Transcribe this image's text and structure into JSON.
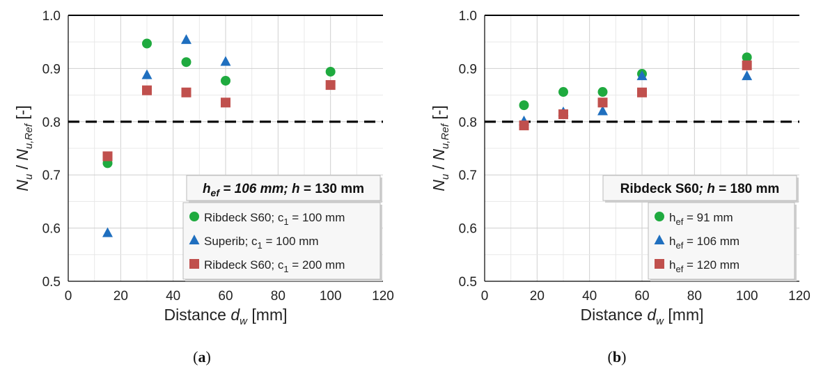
{
  "colors": {
    "green": "#1faa3f",
    "blue": "#1f6fbf",
    "red": "#c0504d",
    "grid": "#d9d9d9",
    "dash": "#000000"
  },
  "chart_data": [
    {
      "type": "scatter",
      "caption": "a",
      "xlabel": "Distance d_w [mm]",
      "xlabel_main": "Distance ",
      "xlabel_var": "d",
      "xlabel_sub": "w",
      "xlabel_unit": " [mm]",
      "ylabel": "N_u / N_u,Ref [-]",
      "xlim": [
        0,
        120
      ],
      "ylim": [
        0.5,
        1.0
      ],
      "xticks": [
        "0",
        "20",
        "40",
        "60",
        "80",
        "100",
        "120"
      ],
      "yticks": [
        "0.5",
        "0.6",
        "0.7",
        "0.8",
        "0.9",
        "1.0"
      ],
      "reference_line": 0.8,
      "info_box": {
        "p1": "h",
        "s1": "ef",
        "p2": " = 106 mm; ",
        "p3": "h",
        "p4": " = 130 mm"
      },
      "legend_position": "bottom-right",
      "series": [
        {
          "name": "Ribdeck S60; c1 = 100 mm",
          "label_main": "Ribdeck S60; c",
          "label_sub": "1",
          "label_tail": " = 100 mm",
          "marker": "circle",
          "color": "#1faa3f",
          "x": [
            15,
            30,
            45,
            60,
            100
          ],
          "y": [
            0.722,
            0.947,
            0.912,
            0.877,
            0.894
          ]
        },
        {
          "name": "Superib; c1 = 100 mm",
          "label_main": "Superib; c",
          "label_sub": "1",
          "label_tail": " = 100 mm",
          "marker": "triangle",
          "color": "#1f6fbf",
          "x": [
            15,
            30,
            45,
            60
          ],
          "y": [
            0.591,
            0.888,
            0.954,
            0.913
          ]
        },
        {
          "name": "Ribdeck S60; c1 = 200 mm",
          "label_main": "Ribdeck S60; c",
          "label_sub": "1",
          "label_tail": " = 200 mm",
          "marker": "square",
          "color": "#c0504d",
          "x": [
            15,
            30,
            45,
            60,
            100
          ],
          "y": [
            0.735,
            0.859,
            0.855,
            0.836,
            0.869
          ]
        }
      ]
    },
    {
      "type": "scatter",
      "caption": "b",
      "xlabel": "Distance d_w [mm]",
      "xlabel_main": "Distance ",
      "xlabel_var": "d",
      "xlabel_sub": "w",
      "xlabel_unit": " [mm]",
      "ylabel": "N_u / N_u,Ref [-]",
      "xlim": [
        0,
        120
      ],
      "ylim": [
        0.5,
        1.0
      ],
      "xticks": [
        "0",
        "20",
        "40",
        "60",
        "80",
        "100",
        "120"
      ],
      "yticks": [
        "0.5",
        "0.6",
        "0.7",
        "0.8",
        "0.9",
        "1.0"
      ],
      "reference_line": 0.8,
      "info_box": {
        "p1": "Ribdeck S60",
        "s1": "",
        "p2": "; ",
        "p3": "h",
        "p4": " = 180 mm"
      },
      "legend_position": "bottom-right",
      "series": [
        {
          "name": "hef = 91 mm",
          "label_main": "h",
          "label_sub": "ef",
          "label_tail": " = 91 mm",
          "marker": "circle",
          "color": "#1faa3f",
          "x": [
            15,
            30,
            45,
            60,
            100
          ],
          "y": [
            0.831,
            0.856,
            0.856,
            0.89,
            0.921
          ]
        },
        {
          "name": "hef = 106 mm",
          "label_main": "h",
          "label_sub": "ef",
          "label_tail": " = 106 mm",
          "marker": "triangle",
          "color": "#1f6fbf",
          "x": [
            15,
            30,
            45,
            60,
            100
          ],
          "y": [
            0.801,
            0.818,
            0.82,
            0.886,
            0.886
          ]
        },
        {
          "name": "hef = 120 mm",
          "label_main": "h",
          "label_sub": "ef",
          "label_tail": " = 120 mm",
          "marker": "square",
          "color": "#c0504d",
          "x": [
            15,
            30,
            45,
            60,
            100
          ],
          "y": [
            0.793,
            0.814,
            0.836,
            0.855,
            0.906
          ]
        }
      ]
    }
  ]
}
